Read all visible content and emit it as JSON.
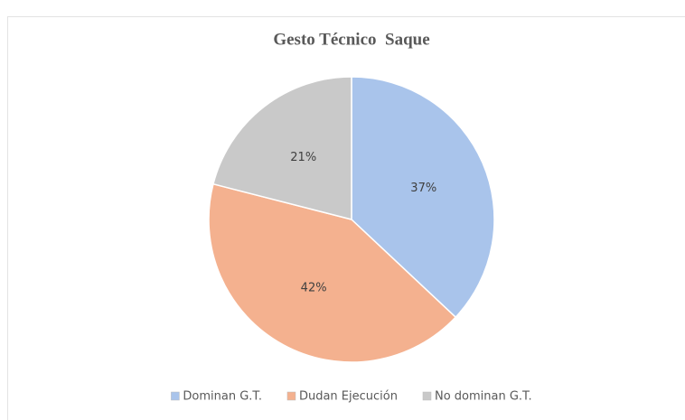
{
  "chart_data": {
    "type": "pie",
    "title": "Gesto Técnico  Saque",
    "categories": [
      "Dominan G.T.",
      "Dudan Ejecución",
      "No dominan G.T."
    ],
    "values": [
      37,
      42,
      21
    ],
    "value_labels": [
      "37%",
      "42%",
      "21%"
    ],
    "colors": [
      "#a9c4eb",
      "#f4b18f",
      "#c9c9c9"
    ],
    "legend": "bottom"
  }
}
